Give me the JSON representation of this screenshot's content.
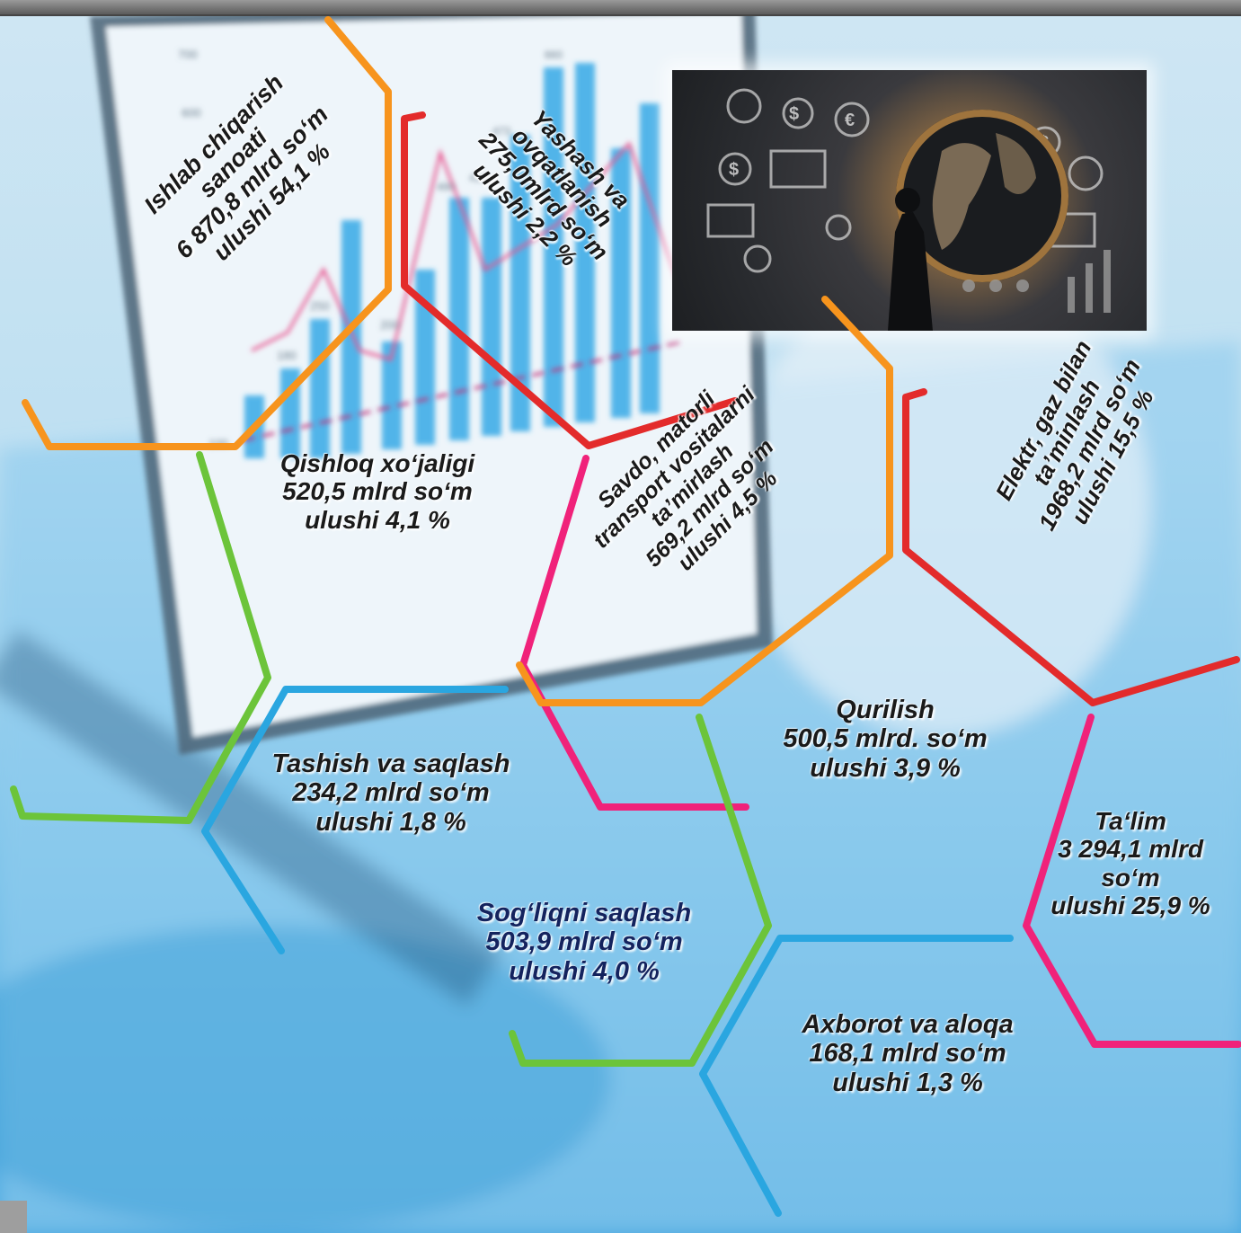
{
  "sectors": [
    {
      "id": "manufacturing",
      "lines": [
        "Ishlab chiqarish",
        "sanoati",
        "6 870,8 mlrd so‘m",
        "ulushi    54,1 %"
      ]
    },
    {
      "id": "accommodation",
      "lines": [
        "Yashash va",
        "ovqatlanish",
        "275,0mlrd so‘m",
        "ulushi  2,2 %"
      ]
    },
    {
      "id": "agriculture",
      "lines": [
        "Qishloq xo‘jaligi",
        "520,5 mlrd so‘m",
        "ulushi  4,1 %"
      ]
    },
    {
      "id": "trade",
      "lines": [
        "Savdo, matorli",
        "transport vositalarni",
        "ta’mirlash",
        "569,2 mlrd so‘m",
        "ulushi  4,5 %"
      ]
    },
    {
      "id": "electricity",
      "lines": [
        "Elektr, gaz bilan",
        "ta’minlash",
        "1968,2 mlrd so‘m",
        "ulushi      15,5 %"
      ]
    },
    {
      "id": "construction",
      "lines": [
        "Qurilish",
        "500,5 mlrd. so‘m",
        "ulushi  3,9 %"
      ]
    },
    {
      "id": "transport",
      "lines": [
        "Tashish va saqlash",
        "234,2 mlrd so‘m",
        "ulushi  1,8 %"
      ]
    },
    {
      "id": "education",
      "lines": [
        "Ta‘lim",
        "3 294,1 mlrd",
        "so‘m",
        "ulushi 25,9 %"
      ]
    },
    {
      "id": "health",
      "lines": [
        "Sog‘liqni saqlash",
        "503,9 mlrd so‘m",
        "ulushi     4,0 %"
      ]
    },
    {
      "id": "ict",
      "lines": [
        "Axborot va aloqa",
        "168,1 mlrd so‘m",
        "ulushi     1,3 %"
      ]
    }
  ],
  "background_chart": {
    "axis_ticks": [
      "700",
      "600",
      "250",
      "180",
      "200",
      "100"
    ],
    "bar_labels": [
      "473",
      "490",
      "410",
      "660"
    ]
  },
  "colors": {
    "orange": "#f7941d",
    "red": "#e32b2b",
    "green": "#6cc43a",
    "pink": "#f0227a",
    "blue": "#2aa6e0",
    "label_text": "#1a1a1a",
    "health_text": "#14235e"
  },
  "photo": {
    "icon": "global-economy-illustration"
  }
}
